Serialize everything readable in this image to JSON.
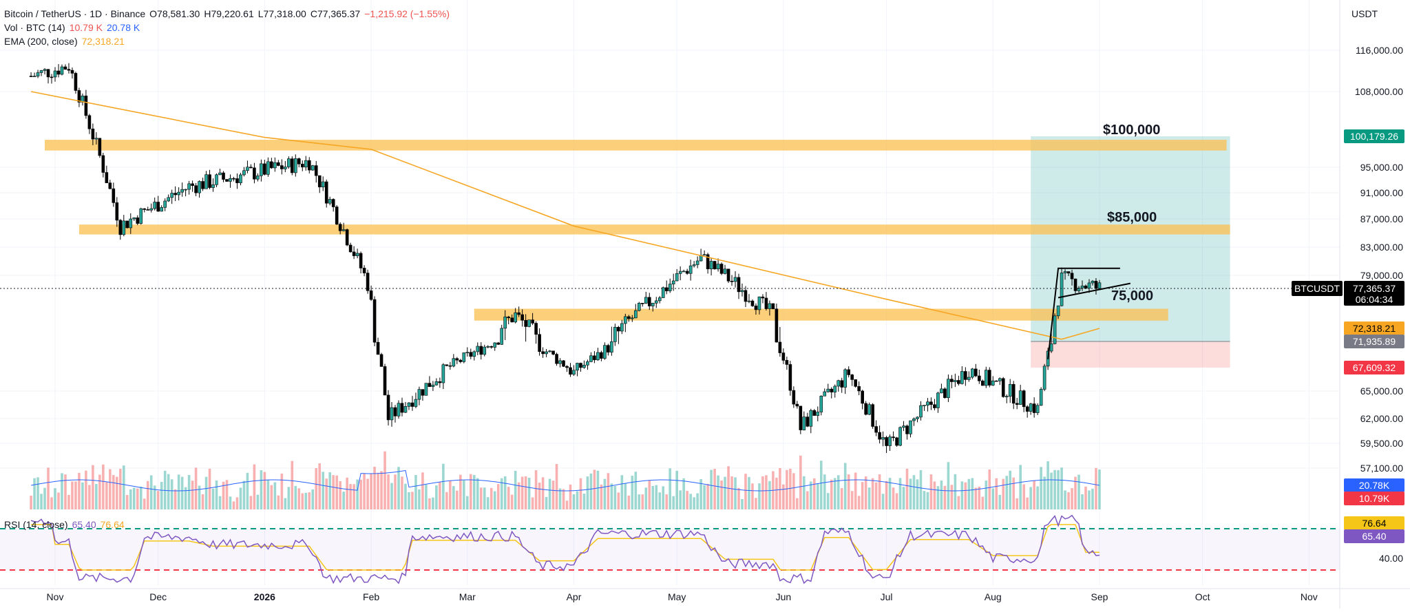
{
  "header": {
    "symbol": "Bitcoin / TetherUS · 1D · Binance",
    "open": "O78,581.30",
    "high": "H79,220.61",
    "low": "L77,318.00",
    "close": "C77,365.37",
    "change": "−1,215.92 (−1.55%)",
    "vol_label": "Vol · BTC (14)",
    "vol_value1": "10.79 K",
    "vol_value2": "20.78 K",
    "ema_label": "EMA (200, close)",
    "ema_value": "72,318.21",
    "rsi_label": "RSI (14, close)",
    "rsi_value1": "65.40",
    "rsi_value2": "76.64"
  },
  "currency": "USDT",
  "colors": {
    "up": "#26a69a",
    "down": "#ef5350",
    "candle_body": "#000000",
    "ema": "#f6a623",
    "zone": "#fbbf4f",
    "target": "#26a69a",
    "stop": "#ef5350",
    "rsi": "#7e57c2",
    "rsi_ma": "#f5c518"
  },
  "chart_data": [
    {
      "type": "candlestick",
      "x_ticks": [
        "Nov",
        "Dec",
        "2026",
        "Feb",
        "Mar",
        "Apr",
        "May",
        "Jun",
        "Jul",
        "Aug",
        "Sep",
        "Oct",
        "Nov"
      ],
      "y_ticks": [
        "116,000.00",
        "108,000.00",
        "95,000.00",
        "91,000.00",
        "87,000.00",
        "83,000.00",
        "79,000.00",
        "65,000.00",
        "62,000.00",
        "59,500.00",
        "57,100.00",
        "40.00"
      ],
      "price_labels": [
        {
          "text": "100,179.26",
          "value": 100179.26,
          "color": "#089981"
        },
        {
          "text": "77,365.37",
          "value": 77365.37,
          "color": "#000000",
          "tag": "BTCUSDT",
          "countdown": "06:04:34"
        },
        {
          "text": "72,318.21",
          "value": 72318.21,
          "color": "#f6a623"
        },
        {
          "text": "71,935.89",
          "value": 71935.89,
          "color": "#787b86"
        },
        {
          "text": "67,609.32",
          "value": 67609.32,
          "color": "#f23645"
        },
        {
          "text": "20.78K",
          "color": "#2962ff"
        },
        {
          "text": "10.79K",
          "color": "#f23645"
        },
        {
          "text": "76.64",
          "color": "#f5c518"
        },
        {
          "text": "65.40",
          "color": "#7e57c2"
        }
      ],
      "annotations": [
        "$100,000",
        "$85,000",
        "75,000"
      ],
      "zones": [
        {
          "from": 97800,
          "to": 99600
        },
        {
          "from": 84800,
          "to": 86200
        },
        {
          "from": 73300,
          "to": 74800
        }
      ],
      "ohlc_key_points": [
        {
          "date": "2025-10-25",
          "price": 111000
        },
        {
          "date": "2025-11-05",
          "price": 113000
        },
        {
          "date": "2025-11-20",
          "price": 86000
        },
        {
          "date": "2025-12-10",
          "price": 92000
        },
        {
          "date": "2026-01-14",
          "price": 96000
        },
        {
          "date": "2026-01-31",
          "price": 78000
        },
        {
          "date": "2026-02-06",
          "price": 62000
        },
        {
          "date": "2026-03-15",
          "price": 74000
        },
        {
          "date": "2026-04-01",
          "price": 67000
        },
        {
          "date": "2026-05-08",
          "price": 81500
        },
        {
          "date": "2026-05-29",
          "price": 74000
        },
        {
          "date": "2026-06-06",
          "price": 61000
        },
        {
          "date": "2026-06-20",
          "price": 67000
        },
        {
          "date": "2026-07-01",
          "price": 59000
        },
        {
          "date": "2026-07-25",
          "price": 67500
        },
        {
          "date": "2026-08-14",
          "price": 63000
        },
        {
          "date": "2026-08-21",
          "price": 78500
        },
        {
          "date": "2026-09-01",
          "price": 77365
        }
      ],
      "ema200_points": [
        {
          "date": "2025-10-25",
          "price": 108000
        },
        {
          "date": "2026-01-01",
          "price": 100000
        },
        {
          "date": "2026-02-01",
          "price": 98000
        },
        {
          "date": "2026-04-01",
          "price": 86000
        },
        {
          "date": "2026-05-15",
          "price": 81000
        },
        {
          "date": "2026-07-01",
          "price": 76000
        },
        {
          "date": "2026-08-21",
          "price": 72000
        },
        {
          "date": "2026-09-01",
          "price": 72318
        }
      ]
    },
    {
      "type": "volume",
      "series": [
        {
          "name": "Vol · BTC (14)",
          "latest": [
            10.79,
            20.78
          ]
        }
      ]
    },
    {
      "type": "line",
      "series": [
        {
          "name": "RSI (14, close)",
          "latest": 65.4
        },
        {
          "name": "RSI MA",
          "latest": 76.64
        }
      ],
      "bands": [
        70,
        30
      ]
    }
  ]
}
